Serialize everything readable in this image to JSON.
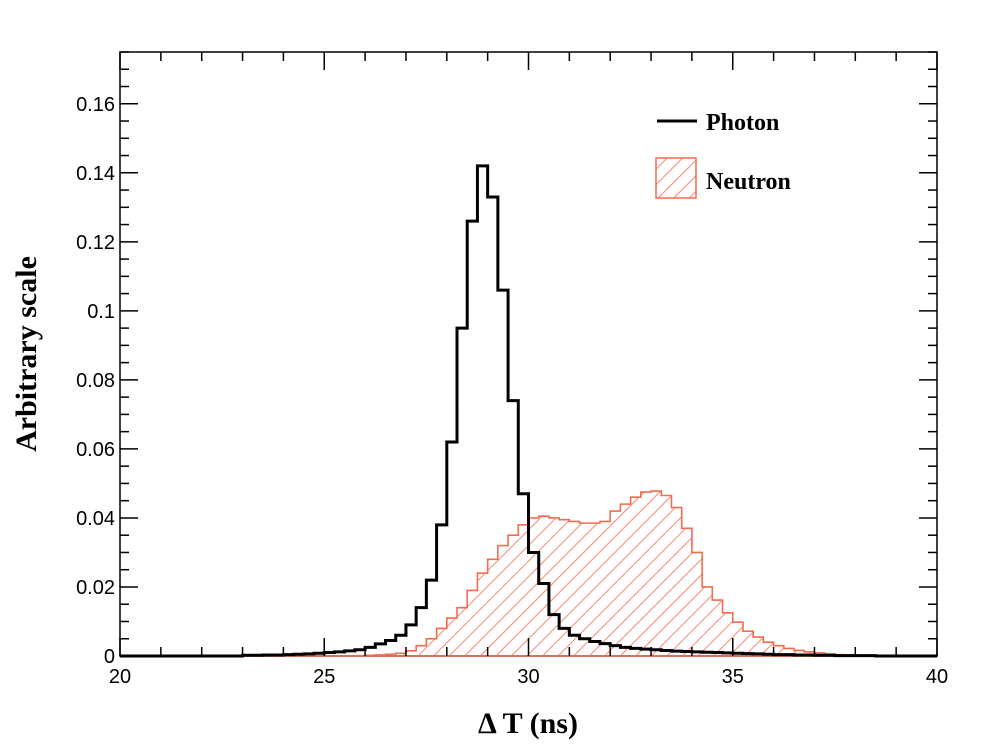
{
  "chart_data": {
    "type": "histogram",
    "xlabel": "Δ T (ns)",
    "ylabel": "Arbitrary scale",
    "xlim": [
      20,
      40
    ],
    "ylim": [
      0,
      0.175
    ],
    "x_ticks": [
      20,
      25,
      30,
      35,
      40
    ],
    "x_tick_labels": [
      "20",
      "25",
      "30",
      "35",
      "40"
    ],
    "y_ticks": [
      0,
      0.02,
      0.04,
      0.06,
      0.08,
      0.1,
      0.12,
      0.14,
      0.16
    ],
    "y_tick_labels": [
      "0",
      "0.02",
      "0.04",
      "0.06",
      "0.08",
      "0.1",
      "0.12",
      "0.14",
      "0.16"
    ],
    "bin_width": 0.25,
    "legend_position": "top-right",
    "series": [
      {
        "name": "Photon",
        "style": "line",
        "color": "#000000",
        "values": [
          0,
          0,
          0,
          0,
          0,
          0,
          0,
          0,
          0,
          0,
          0,
          0,
          0.0002,
          0.0002,
          0.0003,
          0.0003,
          0.0004,
          0.0005,
          0.0006,
          0.0008,
          0.001,
          0.0012,
          0.0015,
          0.0018,
          0.0025,
          0.0035,
          0.0045,
          0.006,
          0.009,
          0.014,
          0.022,
          0.038,
          0.062,
          0.095,
          0.126,
          0.142,
          0.133,
          0.106,
          0.074,
          0.047,
          0.03,
          0.021,
          0.012,
          0.008,
          0.006,
          0.005,
          0.0042,
          0.0036,
          0.003,
          0.0025,
          0.0022,
          0.002,
          0.0018,
          0.0016,
          0.0014,
          0.0013,
          0.0012,
          0.0011,
          0.001,
          0.0009,
          0.0008,
          0.0007,
          0.0006,
          0.0005,
          0.0004,
          0.0004,
          0.0003,
          0.0003,
          0.0002,
          0.0002,
          0.0001,
          0.0001,
          0.0001,
          0.0001,
          0,
          0,
          0,
          0,
          0,
          0
        ]
      },
      {
        "name": "Neutron",
        "style": "hatched",
        "color": "#f26b4f",
        "values": [
          0,
          0,
          0,
          0,
          0,
          0,
          0,
          0,
          0,
          0,
          0,
          0,
          0,
          0,
          0,
          0,
          0,
          0,
          0,
          0,
          0,
          0,
          0.0001,
          0.0001,
          0.0002,
          0.0003,
          0.0005,
          0.0008,
          0.0015,
          0.003,
          0.005,
          0.008,
          0.011,
          0.014,
          0.019,
          0.024,
          0.028,
          0.032,
          0.035,
          0.038,
          0.04,
          0.0405,
          0.04,
          0.0395,
          0.039,
          0.0385,
          0.0385,
          0.039,
          0.042,
          0.044,
          0.046,
          0.0475,
          0.0478,
          0.0465,
          0.043,
          0.037,
          0.03,
          0.02,
          0.0162,
          0.0125,
          0.0098,
          0.0072,
          0.0055,
          0.004,
          0.003,
          0.0022,
          0.0016,
          0.0012,
          0.0009,
          0.0006,
          0.0004,
          0.0003,
          0.0002,
          0.0001,
          0.0001,
          0,
          0,
          0,
          0,
          0
        ]
      }
    ]
  }
}
